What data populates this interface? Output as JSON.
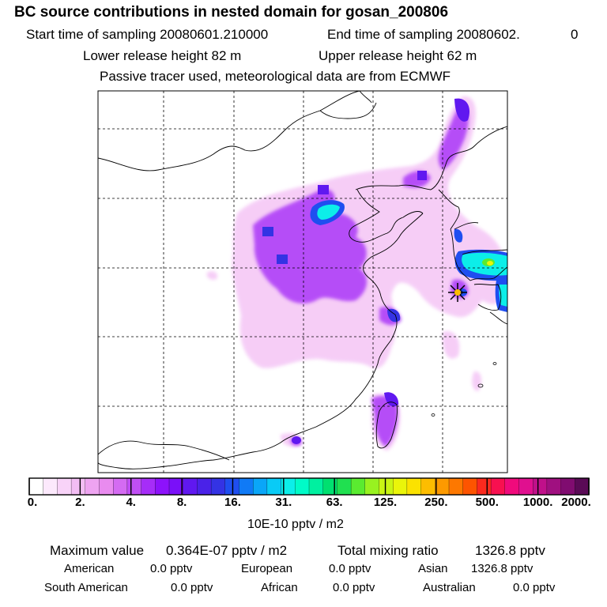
{
  "header": {
    "title": "BC  source contributions in nested domain for gosan_200806",
    "start_time": "Start time of sampling 20080601.210000",
    "end_time": "End time of sampling 20080602.",
    "end_time_suffix": "0",
    "lower_release": "Lower release height   82 m",
    "upper_release": "Upper release height   62 m",
    "tracer_note": "Passive tracer used, meteorological data are from ECMWF"
  },
  "colorbar": {
    "tick_labels": [
      "0.",
      "2.",
      "4.",
      "8.",
      "16.",
      "31.",
      "63.",
      "125.",
      "250.",
      "500.",
      "1000.",
      "2000."
    ],
    "unit": "10E-10 pptv / m2",
    "colors": [
      "#ffffff",
      "#fce9fc",
      "#f8d3f8",
      "#f3bdf4",
      "#eea4f1",
      "#e98bef",
      "#d46bf2",
      "#c04ff5",
      "#a62df8",
      "#8d12fb",
      "#7a10f8",
      "#6018f0",
      "#4a22e8",
      "#3433e4",
      "#1f4ef0",
      "#107af6",
      "#0aa6f8",
      "#09cbf6",
      "#0ceee9",
      "#00fbc8",
      "#00f0a0",
      "#00e070",
      "#20e050",
      "#5aeb30",
      "#98f220",
      "#c9f514",
      "#eaf50a",
      "#fbe200",
      "#fdbd00",
      "#fd9a00",
      "#fd7800",
      "#fd5400",
      "#fb2a1e",
      "#f81050",
      "#f00a7c",
      "#e0108f",
      "#c0108a",
      "#a01080",
      "#800c70",
      "#5a0a56"
    ]
  },
  "stats": {
    "max_label": "Maximum value",
    "max_value": "0.364E-07 pptv / m2",
    "total_label": "Total mixing ratio",
    "total_value": "1326.8 pptv",
    "regions": [
      {
        "name": "American",
        "value": "0.0 pptv"
      },
      {
        "name": "European",
        "value": "0.0 pptv"
      },
      {
        "name": "Asian",
        "value": "1326.8 pptv"
      },
      {
        "name": "South American",
        "value": "0.0 pptv"
      },
      {
        "name": "African",
        "value": "0.0 pptv"
      },
      {
        "name": "Australian",
        "value": "0.0 pptv"
      }
    ]
  }
}
